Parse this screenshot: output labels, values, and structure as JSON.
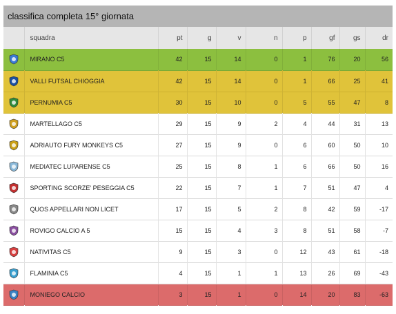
{
  "title": "classifica completa 15° giornata",
  "columns": {
    "team": "squadra",
    "pt": "pt",
    "g": "g",
    "v": "v",
    "n": "n",
    "p": "p",
    "gf": "gf",
    "gs": "gs",
    "dr": "dr"
  },
  "colors": {
    "promotion": "#8cbf3f",
    "playoff": "#e0c33a",
    "relegation": "#dc6b6b",
    "header": "#b5b5b5"
  },
  "teams": [
    {
      "name": "MIRANO C5",
      "pt": "42",
      "g": "15",
      "v": "14",
      "n": "0",
      "p": "1",
      "gf": "76",
      "gs": "20",
      "dr": "56",
      "zone": "green",
      "logo": "mirano-crest-icon"
    },
    {
      "name": "VALLI FUTSAL CHIOGGIA",
      "pt": "42",
      "g": "15",
      "v": "14",
      "n": "0",
      "p": "1",
      "gf": "66",
      "gs": "25",
      "dr": "41",
      "zone": "yellow",
      "logo": "valli-crest-icon"
    },
    {
      "name": "PERNUMIA C5",
      "pt": "30",
      "g": "15",
      "v": "10",
      "n": "0",
      "p": "5",
      "gf": "55",
      "gs": "47",
      "dr": "8",
      "zone": "yellow",
      "logo": "pernumia-crest-icon"
    },
    {
      "name": "MARTELLAGO C5",
      "pt": "29",
      "g": "15",
      "v": "9",
      "n": "2",
      "p": "4",
      "gf": "44",
      "gs": "31",
      "dr": "13",
      "zone": "none",
      "logo": "martellago-crest-icon"
    },
    {
      "name": "ADRIAUTO FURY MONKEYS C5",
      "pt": "27",
      "g": "15",
      "v": "9",
      "n": "0",
      "p": "6",
      "gf": "60",
      "gs": "50",
      "dr": "10",
      "zone": "none",
      "logo": "fury-monkeys-crest-icon"
    },
    {
      "name": "MEDIATEC LUPARENSE C5",
      "pt": "25",
      "g": "15",
      "v": "8",
      "n": "1",
      "p": "6",
      "gf": "66",
      "gs": "50",
      "dr": "16",
      "zone": "none",
      "logo": "luparense-crest-icon"
    },
    {
      "name": "SPORTING SCORZE' PESEGGIA C5",
      "pt": "22",
      "g": "15",
      "v": "7",
      "n": "1",
      "p": "7",
      "gf": "51",
      "gs": "47",
      "dr": "4",
      "zone": "none",
      "logo": "sporting-crest-icon"
    },
    {
      "name": "QUOS APPELLARI NON LICET",
      "pt": "17",
      "g": "15",
      "v": "5",
      "n": "2",
      "p": "8",
      "gf": "42",
      "gs": "59",
      "dr": "-17",
      "zone": "none",
      "logo": "quos-crest-icon"
    },
    {
      "name": "ROVIGO CALCIO A 5",
      "pt": "15",
      "g": "15",
      "v": "4",
      "n": "3",
      "p": "8",
      "gf": "51",
      "gs": "58",
      "dr": "-7",
      "zone": "none",
      "logo": "rovigo-crest-icon"
    },
    {
      "name": "NATIVITAS C5",
      "pt": "9",
      "g": "15",
      "v": "3",
      "n": "0",
      "p": "12",
      "gf": "43",
      "gs": "61",
      "dr": "-18",
      "zone": "none",
      "logo": "nativitas-crest-icon"
    },
    {
      "name": "FLAMINIA C5",
      "pt": "4",
      "g": "15",
      "v": "1",
      "n": "1",
      "p": "13",
      "gf": "26",
      "gs": "69",
      "dr": "-43",
      "zone": "none",
      "logo": "flaminia-crest-icon"
    },
    {
      "name": "MONIEGO CALCIO",
      "pt": "3",
      "g": "15",
      "v": "1",
      "n": "0",
      "p": "14",
      "gf": "20",
      "gs": "83",
      "dr": "-63",
      "zone": "red",
      "logo": "moniego-crest-icon"
    }
  ]
}
